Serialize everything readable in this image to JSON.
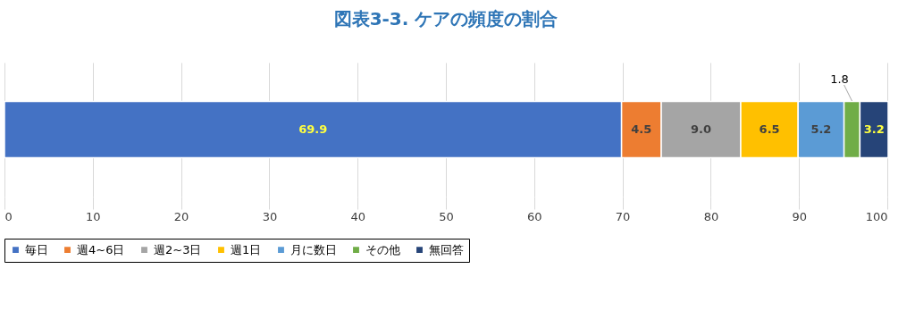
{
  "chart_data": {
    "type": "bar",
    "title": "図表3-3. ケアの頻度の割合",
    "orientation": "horizontal",
    "stacked": true,
    "categories": [
      null
    ],
    "series": [
      {
        "name": "毎日",
        "color": "#4472c4",
        "values": [
          69.9
        ],
        "value_labels": [
          "69.9"
        ]
      },
      {
        "name": "週4~6日",
        "color": "#ed7d31",
        "values": [
          4.5
        ],
        "value_labels": [
          "4.5"
        ]
      },
      {
        "name": "週2~3日",
        "color": "#a5a5a5",
        "values": [
          9.0
        ],
        "value_labels": [
          "9.0"
        ]
      },
      {
        "name": "週1日",
        "color": "#ffc000",
        "values": [
          6.5
        ],
        "value_labels": [
          "6.5"
        ]
      },
      {
        "name": "月に数日",
        "color": "#5b9bd5",
        "values": [
          5.2
        ],
        "value_labels": [
          "5.2"
        ]
      },
      {
        "name": "その他",
        "color": "#70ad47",
        "values": [
          1.8
        ],
        "value_labels": [
          "1.8"
        ]
      },
      {
        "name": "無回答",
        "color": "#264478",
        "values": [
          3.2
        ],
        "value_labels": [
          "3.2"
        ]
      }
    ],
    "xlim": [
      0,
      100
    ],
    "xticks": [
      0,
      10,
      20,
      30,
      40,
      50,
      60,
      70,
      80,
      90,
      100
    ],
    "grid": "x",
    "legend": "bottom",
    "tick_labels": "x"
  }
}
